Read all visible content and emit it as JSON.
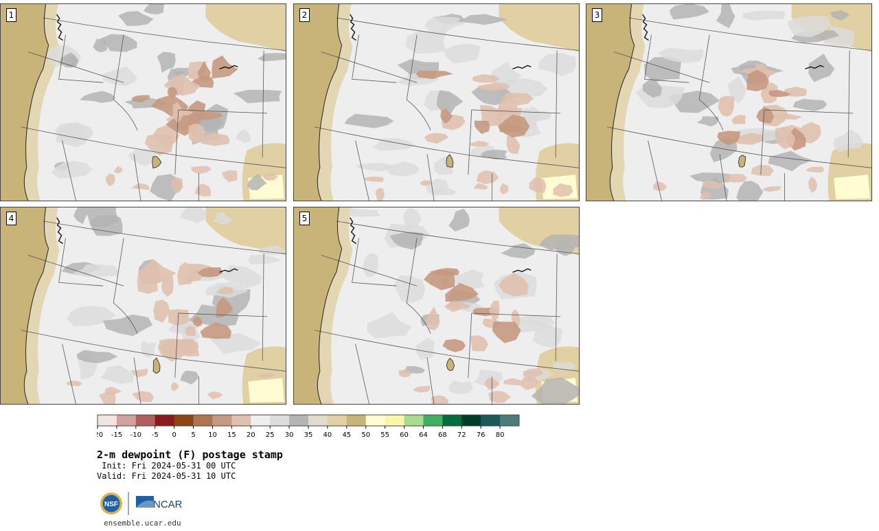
{
  "figure": {
    "title": "2-m dewpoint (F) postage stamp",
    "init": " Init: Fri 2024-05-31 00 UTC",
    "valid": "Valid: Fri 2024-05-31 10 UTC",
    "site": "ensemble.ucar.edu"
  },
  "stamps": [
    {
      "label": "1",
      "brown_level": 0.7
    },
    {
      "label": "2",
      "brown_level": 0.55
    },
    {
      "label": "3",
      "brown_level": 0.65
    },
    {
      "label": "4",
      "brown_level": 0.8
    },
    {
      "label": "5",
      "brown_level": 0.5
    }
  ],
  "colorbar": {
    "ticks": [
      "-20",
      "-15",
      "-10",
      "-5",
      "0",
      "5",
      "10",
      "15",
      "20",
      "25",
      "30",
      "35",
      "40",
      "45",
      "50",
      "55",
      "60",
      "64",
      "68",
      "72",
      "76",
      "80"
    ],
    "colors": [
      "#f3e4e4",
      "#d3a0a0",
      "#b05e5e",
      "#8b1a1a",
      "#8b4513",
      "#ad7550",
      "#c59880",
      "#dfc0ae",
      "#eeeeee",
      "#dcdcdc",
      "#b4b4b4",
      "#e0dccc",
      "#e0d0a4",
      "#c8b478",
      "#fffbd2",
      "#f8f8a8",
      "#a8dc90",
      "#40b060",
      "#006e3c",
      "#003c28",
      "#1b5a5a",
      "#4a7c7c"
    ]
  },
  "logos": {
    "nsf": "NSF",
    "ncar": "NCAR"
  },
  "map_colors": {
    "ocean": "#c8b478",
    "land": "#eeeeee",
    "gray_light": "#dcdcdc",
    "gray_dark": "#b4b4b4",
    "tan": "#e0d0a4",
    "brown": "#dfc0ae",
    "brown_dark": "#c59880",
    "yellow": "#fffbd2"
  }
}
